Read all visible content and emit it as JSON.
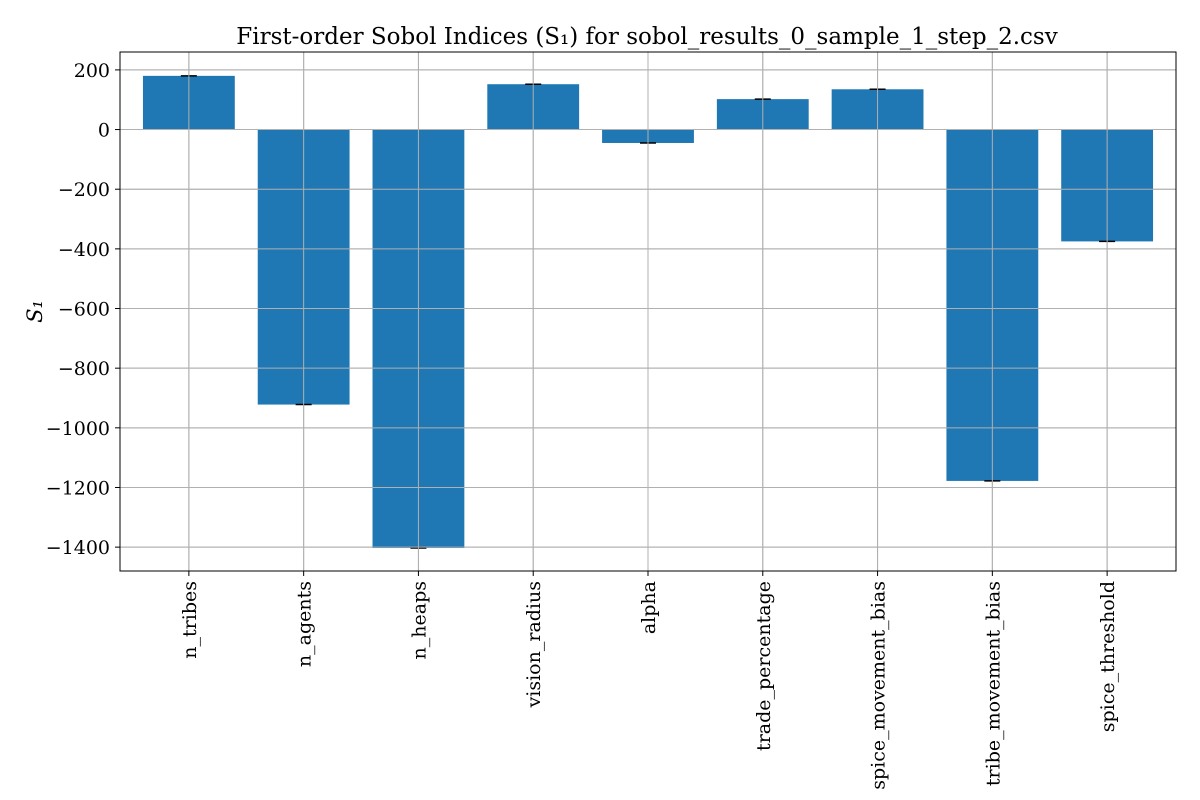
{
  "chart_data": {
    "type": "bar",
    "title": "First-order Sobol Indices (S₁) for sobol_results_0_sample_1_step_2.csv",
    "xlabel": "",
    "ylabel": "S₁",
    "categories": [
      "n_tribes",
      "n_agents",
      "n_heaps",
      "vision_radius",
      "alpha",
      "trade_percentage",
      "spice_movement_bias",
      "tribe_movement_bias",
      "spice_threshold"
    ],
    "values": [
      180,
      -922,
      -1403,
      152,
      -45,
      102,
      135,
      -1178,
      -375
    ],
    "error": [
      2,
      2,
      2,
      2,
      2,
      2,
      2,
      2,
      2
    ],
    "ylim": [
      -1480,
      260
    ],
    "yticks": [
      200,
      0,
      -200,
      -400,
      -600,
      -800,
      -1000,
      -1200,
      -1400
    ],
    "ytick_labels": [
      "200",
      "0",
      "−200",
      "−400",
      "−600",
      "−800",
      "−1000",
      "−1200",
      "−1400"
    ],
    "grid": true,
    "bar_color": "#1f77b4",
    "error_color": "#000000"
  }
}
